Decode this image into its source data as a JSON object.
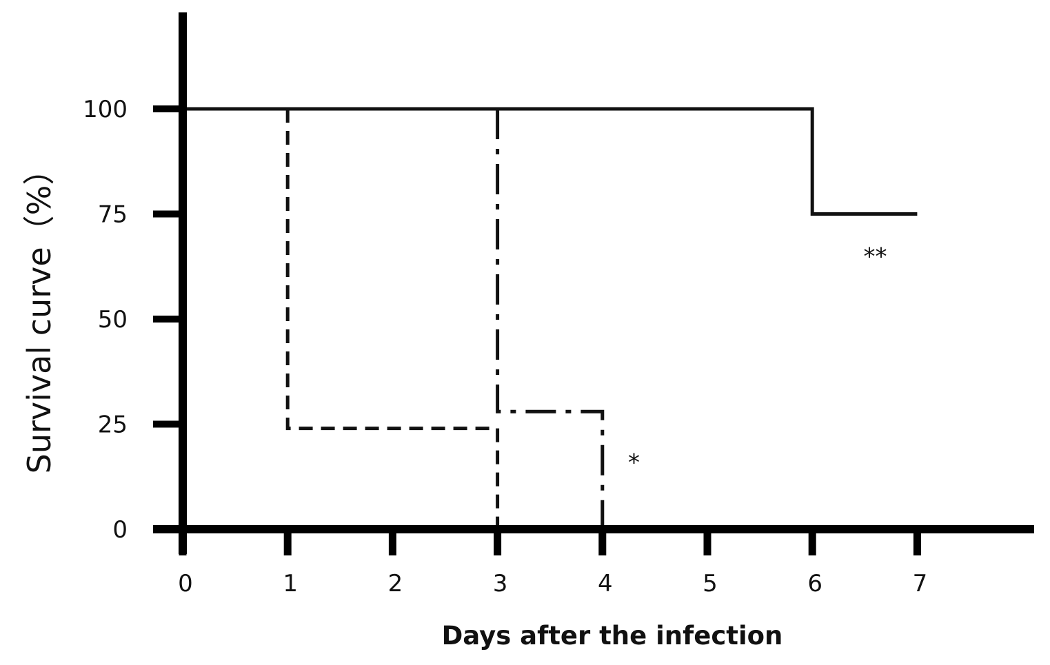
{
  "chart_data": {
    "type": "line",
    "subtype": "step",
    "title": "",
    "xlabel": "Days after the infection",
    "ylabel": "Survival curve（%）",
    "xlim": [
      0,
      8
    ],
    "ylim": [
      0,
      120
    ],
    "x_ticks": [
      "0",
      "1",
      "2",
      "3",
      "4",
      "5",
      "6",
      "7"
    ],
    "y_ticks": [
      "0",
      "25",
      "50",
      "75",
      "100"
    ],
    "grid": false,
    "legend": "none",
    "series": [
      {
        "style": "solid",
        "x": [
          0,
          6,
          6,
          7
        ],
        "y": [
          100,
          100,
          75,
          75
        ]
      },
      {
        "style": "dashed",
        "x": [
          1,
          1,
          3,
          3
        ],
        "y": [
          100,
          24,
          24,
          0
        ]
      },
      {
        "style": "dash-dot",
        "x": [
          3,
          3,
          4,
          4
        ],
        "y": [
          100,
          28,
          28,
          0
        ]
      }
    ],
    "annotations": [
      {
        "text": "*",
        "x": 4.3,
        "y": 14
      },
      {
        "text": "**",
        "x": 6.6,
        "y": 63
      }
    ]
  }
}
